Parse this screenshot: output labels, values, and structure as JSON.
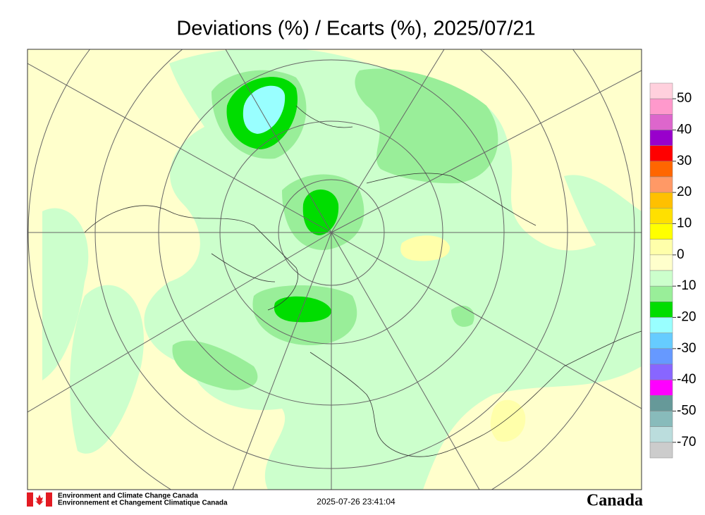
{
  "title": "Deviations (%) / Ecarts (%), 2025/07/21",
  "colorbar": {
    "colors": [
      "#ffd0dd",
      "#ff99cc",
      "#dd66cc",
      "#9900cc",
      "#ff0000",
      "#ff6600",
      "#ff9966",
      "#ffc000",
      "#ffe000",
      "#ffff00",
      "#ffffaa",
      "#ffffcc",
      "#ccffcc",
      "#99ee99",
      "#00dd00",
      "#99ffff",
      "#66ccff",
      "#6699ff",
      "#8866ff",
      "#ff00ff",
      "#669999",
      "#88bbbb",
      "#bbdddd",
      "#cccccc"
    ],
    "labels": [
      50,
      40,
      30,
      20,
      10,
      0,
      -10,
      -20,
      -30,
      -40,
      -50,
      -70
    ]
  },
  "footer": {
    "agency_en": "Environment and Climate Change Canada",
    "agency_fr": "Environnement et Changement Climatique Canada",
    "timestamp": "2025-07-26 23:41:04",
    "wordmark": "Canada"
  }
}
